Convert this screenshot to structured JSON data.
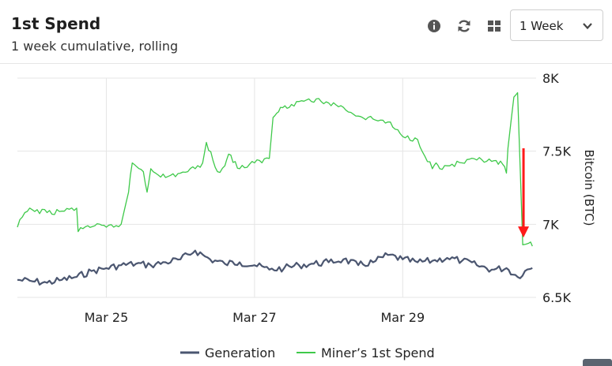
{
  "header": {
    "title": "1st Spend",
    "subtitle": "1 week cumulative, rolling",
    "info_icon": "info-icon",
    "refresh_icon": "refresh-icon",
    "grid_icon": "grid-icon",
    "range_select": {
      "value": "1 Week"
    }
  },
  "colors": {
    "generation": "#4b5670",
    "spend": "#3fc94a",
    "arrow": "#ff1a1a",
    "grid": "#e5e5e5"
  },
  "chart_data": {
    "type": "line",
    "xlabel": "",
    "ylabel": "Bitcoin (BTC)",
    "ylim": [
      6500,
      8000
    ],
    "yticks": [
      6500,
      7000,
      7500,
      8000
    ],
    "ytick_labels": [
      "6.5K",
      "7K",
      "7.5K",
      "8K"
    ],
    "xlim": [
      23.8,
      30.8
    ],
    "xticks": [
      25,
      27,
      29
    ],
    "xtick_labels": [
      "Mar 25",
      "Mar 27",
      "Mar 29"
    ],
    "grid": true,
    "legend_position": "bottom",
    "series": [
      {
        "name": "Generation",
        "x": [
          23.8,
          24.0,
          24.2,
          24.4,
          24.6,
          24.8,
          25.0,
          25.2,
          25.4,
          25.6,
          25.8,
          26.0,
          26.2,
          26.4,
          26.6,
          26.8,
          27.0,
          27.2,
          27.4,
          27.6,
          27.8,
          28.0,
          28.2,
          28.4,
          28.6,
          28.8,
          29.0,
          29.2,
          29.4,
          29.6,
          29.8,
          30.0,
          30.2,
          30.4,
          30.55,
          30.65,
          30.75
        ],
        "values": [
          6620,
          6610,
          6600,
          6620,
          6640,
          6680,
          6700,
          6720,
          6730,
          6720,
          6740,
          6760,
          6820,
          6760,
          6730,
          6740,
          6720,
          6690,
          6700,
          6720,
          6730,
          6740,
          6760,
          6720,
          6740,
          6790,
          6760,
          6740,
          6750,
          6770,
          6750,
          6720,
          6690,
          6700,
          6640,
          6680,
          6700
        ]
      },
      {
        "name": "Miner’s 1st Spend",
        "x": [
          23.8,
          23.9,
          24.0,
          24.2,
          24.4,
          24.6,
          24.62,
          24.75,
          25.0,
          25.2,
          25.3,
          25.35,
          25.5,
          25.55,
          25.6,
          25.8,
          26.0,
          26.2,
          26.3,
          26.35,
          26.5,
          26.6,
          26.65,
          26.8,
          27.0,
          27.2,
          27.25,
          27.3,
          27.35,
          27.5,
          27.6,
          27.7,
          27.9,
          28.0,
          28.2,
          28.4,
          28.6,
          28.8,
          28.9,
          29.0,
          29.2,
          29.4,
          29.45,
          29.5,
          29.6,
          29.8,
          30.0,
          30.2,
          30.35,
          30.4,
          30.42,
          30.5,
          30.55,
          30.62,
          30.7,
          30.75
        ],
        "values": [
          6980,
          7080,
          7100,
          7080,
          7090,
          7110,
          6950,
          6990,
          6980,
          7000,
          7220,
          7420,
          7360,
          7220,
          7380,
          7320,
          7350,
          7380,
          7420,
          7560,
          7360,
          7400,
          7480,
          7380,
          7420,
          7450,
          7730,
          7760,
          7800,
          7820,
          7840,
          7850,
          7840,
          7830,
          7800,
          7740,
          7720,
          7700,
          7650,
          7600,
          7580,
          7380,
          7420,
          7380,
          7400,
          7420,
          7440,
          7430,
          7410,
          7350,
          7520,
          7870,
          7900,
          6860,
          6870,
          6850
        ]
      }
    ],
    "annotations": [
      {
        "type": "arrow",
        "direction": "down",
        "x": 30.63,
        "from": 7520,
        "to": 6920
      }
    ]
  }
}
